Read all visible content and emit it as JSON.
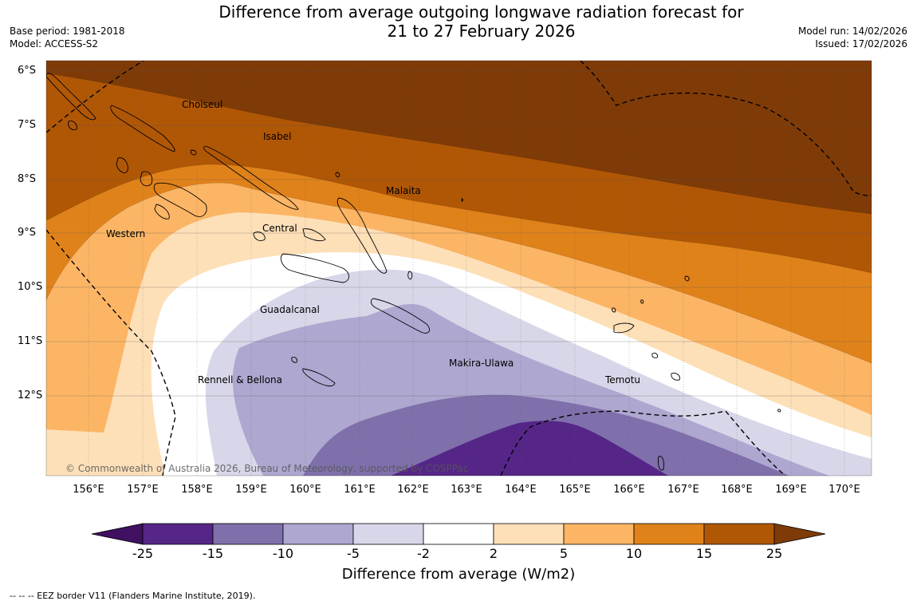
{
  "header": {
    "title_line1": "Difference from average outgoing longwave radiation forecast for",
    "title_line2": "21 to 27 February 2026",
    "base_period": "Base period: 1981-2018",
    "model": "Model: ACCESS-S2",
    "model_run": "Model run: 14/02/2026",
    "issued": "Issued: 17/02/2026"
  },
  "map": {
    "lat_labels": [
      "6°S",
      "7°S",
      "8°S",
      "9°S",
      "10°S",
      "11°S",
      "12°S"
    ],
    "lon_labels": [
      "156°E",
      "157°E",
      "158°E",
      "159°E",
      "160°E",
      "161°E",
      "162°E",
      "163°E",
      "164°E",
      "165°E",
      "166°E",
      "167°E",
      "168°E",
      "169°E",
      "170°E"
    ],
    "places": {
      "choiseul": "Choiseul",
      "isabel": "Isabel",
      "malaita": "Malaita",
      "central": "Central",
      "western": "Western",
      "guadalcanal": "Guadalcanal",
      "rennell": "Rennell & Bellona",
      "makira": "Makira-Ulawa",
      "temotu": "Temotu"
    },
    "copyright": "© Commonwealth of Australia 2026, Bureau of Meteorology, supported by COSPPac"
  },
  "colorbar": {
    "colors": [
      "#3f1160",
      "#552688",
      "#7f70ab",
      "#aea7d0",
      "#d8d7e9",
      "#ffffff",
      "#fde0b8",
      "#fbb565",
      "#e0821a",
      "#b05706",
      "#7f3b07"
    ],
    "ticks": [
      "-25",
      "-15",
      "-10",
      "-5",
      "-2",
      "2",
      "5",
      "10",
      "15",
      "25"
    ],
    "title": "Difference from average (W/m2)"
  },
  "footnote": "--  --  -- EEZ border V11 (Flanders Marine Institute, 2019)."
}
